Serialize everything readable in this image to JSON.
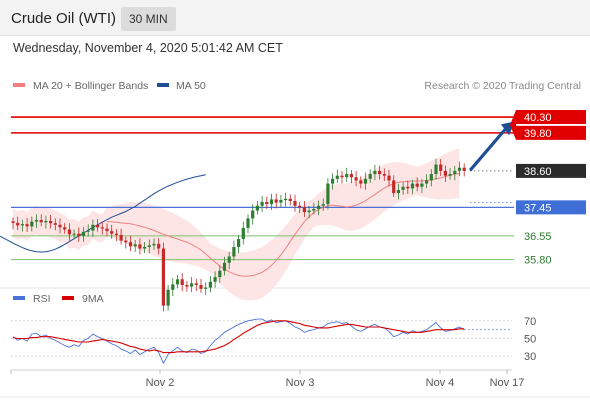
{
  "header": {
    "title": "Crude Oil (WTI)",
    "timeframe": "30 MIN"
  },
  "datetime": "Wednesday, November 4, 2020 5:01:42 AM CET",
  "legend": {
    "items": [
      {
        "label": "MA 20 + Bollinger Bands",
        "color": "#f08080"
      },
      {
        "label": "MA 50",
        "color": "#1f4e96"
      }
    ],
    "credit": "Research © 2020 Trading Central"
  },
  "colors": {
    "resistance": "#e00000",
    "pivot": "#4a72d8",
    "support": "#7fbf6a",
    "candle_up": "#2e7d32",
    "candle_down": "#c62828",
    "bollinger_fill": "#fde0e0",
    "ma20": "#f08080",
    "ma50": "#1f4e96",
    "arrow": "#1f4e96",
    "rsi": "#4a72d8",
    "rsi_ma": "#d40000"
  },
  "chart_data": [
    {
      "type": "candlestick",
      "ylim": [
        35.0,
        40.9
      ],
      "x_labels": [
        "Nov 2",
        "Nov 3",
        "Nov 4",
        "Nov 17"
      ],
      "levels": [
        {
          "value": 40.3,
          "label": "40.30",
          "kind": "resistance"
        },
        {
          "value": 39.8,
          "label": "39.80",
          "kind": "resistance"
        },
        {
          "value": 38.6,
          "label": "38.60",
          "kind": "last"
        },
        {
          "value": 37.45,
          "label": "37.45",
          "kind": "pivot"
        },
        {
          "value": 36.55,
          "label": "36.55",
          "kind": "support"
        },
        {
          "value": 35.8,
          "label": "35.80",
          "kind": "support"
        }
      ],
      "close": [
        36.96,
        36.88,
        36.92,
        36.85,
        37.0,
        37.05,
        36.98,
        37.02,
        36.95,
        36.9,
        36.82,
        36.75,
        36.6,
        36.62,
        36.55,
        36.68,
        36.72,
        36.9,
        36.82,
        36.78,
        36.7,
        36.62,
        36.58,
        36.4,
        36.35,
        36.22,
        36.28,
        36.15,
        36.2,
        36.25,
        36.3,
        36.15,
        34.35,
        34.85,
        35.02,
        35.18,
        35.0,
        34.95,
        35.05,
        35.0,
        34.88,
        34.92,
        35.1,
        35.25,
        35.45,
        35.7,
        35.9,
        36.2,
        36.45,
        36.8,
        37.1,
        37.35,
        37.5,
        37.62,
        37.55,
        37.7,
        37.6,
        37.68,
        37.72,
        37.65,
        37.5,
        37.45,
        37.3,
        37.35,
        37.4,
        37.5,
        37.55,
        38.2,
        38.35,
        38.45,
        38.4,
        38.5,
        38.4,
        38.3,
        38.2,
        38.35,
        38.5,
        38.6,
        38.5,
        38.45,
        38.3,
        37.9,
        38.0,
        38.1,
        38.05,
        38.2,
        38.1,
        38.2,
        38.3,
        38.5,
        38.8,
        38.6,
        38.45,
        38.5,
        38.6,
        38.7,
        38.6
      ],
      "ma20": [
        37.0,
        36.99,
        36.98,
        36.96,
        36.95,
        36.93,
        36.9,
        36.86,
        36.82,
        36.78,
        36.72,
        36.66,
        36.6,
        36.55,
        36.5,
        36.45,
        36.4,
        36.35,
        36.28,
        36.2,
        36.1,
        35.98,
        35.85,
        35.72,
        35.6,
        35.5,
        35.42,
        35.35,
        35.3,
        35.28,
        35.28,
        35.3,
        35.34,
        35.4,
        35.5,
        35.62,
        35.78,
        35.95,
        36.15,
        36.38,
        36.6,
        36.8,
        37.0,
        37.15,
        37.28,
        37.38,
        37.45,
        37.5,
        37.52,
        37.5,
        37.48,
        37.46,
        37.48,
        37.52,
        37.58,
        37.66,
        37.76,
        37.86,
        37.96,
        38.06,
        38.14,
        38.2,
        38.24,
        38.26,
        38.27,
        38.28,
        38.28,
        38.28,
        38.3,
        38.32,
        38.35,
        38.38,
        38.42,
        38.46,
        38.5,
        38.52
      ],
      "ma20_start": 20,
      "ma50": [
        37.28,
        37.2,
        37.12,
        37.04,
        36.96,
        36.88,
        36.8,
        36.72,
        36.64,
        36.56,
        36.48,
        36.4,
        36.32,
        36.25,
        36.18,
        36.12,
        36.08,
        36.05,
        36.04,
        36.05,
        36.08,
        36.13,
        36.2,
        36.28,
        36.37,
        36.46,
        36.55,
        36.64,
        36.73,
        36.82,
        36.9,
        36.98,
        37.06,
        37.14,
        37.2,
        37.26,
        37.32,
        37.4,
        37.48,
        37.58,
        37.68,
        37.78,
        37.88,
        37.97,
        38.05,
        38.12,
        38.18,
        38.24,
        38.29,
        38.34,
        38.38,
        38.42,
        38.45,
        38.48
      ],
      "ma50_start": 42
    },
    {
      "type": "line",
      "title": "RSI",
      "ylim": [
        20,
        80
      ],
      "y_ticks": [
        70,
        50,
        30
      ],
      "series": [
        {
          "name": "RSI",
          "color": "#4a72d8",
          "values": [
            52,
            48,
            50,
            47,
            55,
            56,
            52,
            54,
            50,
            48,
            45,
            42,
            40,
            43,
            41,
            48,
            50,
            55,
            52,
            50,
            47,
            44,
            42,
            38,
            36,
            33,
            37,
            32,
            35,
            38,
            40,
            34,
            22,
            32,
            36,
            40,
            36,
            34,
            38,
            37,
            33,
            35,
            42,
            48,
            52,
            57,
            60,
            63,
            66,
            68,
            70,
            71,
            72,
            72,
            69,
            71,
            68,
            69,
            70,
            67,
            63,
            61,
            57,
            59,
            60,
            62,
            63,
            67,
            68,
            69,
            67,
            68,
            64,
            60,
            58,
            61,
            64,
            66,
            63,
            62,
            58,
            52,
            54,
            57,
            55,
            59,
            57,
            58,
            60,
            64,
            68,
            62,
            58,
            59,
            61,
            63,
            60
          ]
        },
        {
          "name": "9MA",
          "color": "#d40000",
          "values": [
            51,
            50,
            50,
            50,
            51,
            51,
            52,
            52,
            52,
            51,
            50,
            49,
            48,
            47,
            46,
            46,
            46,
            47,
            48,
            49,
            48,
            47,
            46,
            45,
            43,
            41,
            40,
            38,
            37,
            36,
            37,
            36,
            34,
            34,
            34,
            35,
            35,
            35,
            35,
            35,
            35,
            36,
            37,
            38,
            40,
            42,
            45,
            49,
            52,
            56,
            59,
            62,
            65,
            67,
            68,
            69,
            70,
            70,
            70,
            69,
            68,
            67,
            65,
            64,
            63,
            62,
            62,
            62,
            63,
            64,
            65,
            66,
            66,
            65,
            64,
            63,
            63,
            63,
            63,
            62,
            61,
            60,
            59,
            58,
            57,
            57,
            57,
            57,
            58,
            59,
            60,
            60,
            60,
            60,
            60,
            61,
            61
          ]
        }
      ]
    }
  ]
}
